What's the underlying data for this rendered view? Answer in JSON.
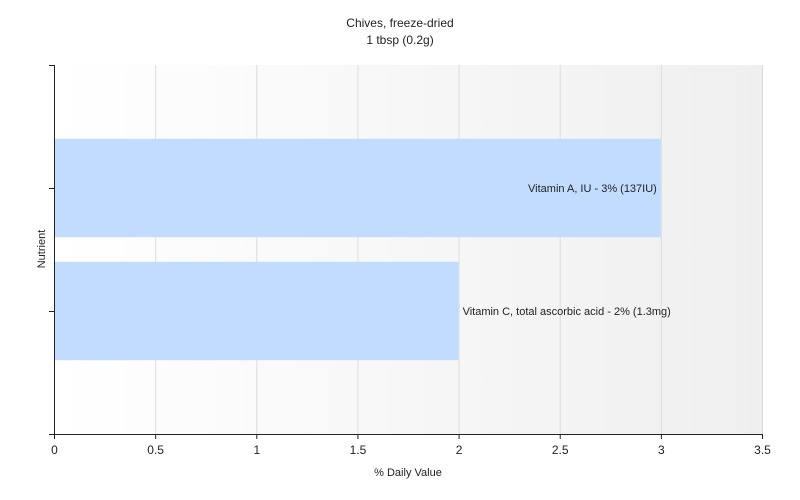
{
  "chart_data": {
    "type": "bar",
    "orientation": "horizontal",
    "title": "Chives, freeze-dried",
    "subtitle": "1 tbsp (0.2g)",
    "xlabel": "% Daily Value",
    "ylabel": "Nutrient",
    "xlim": [
      0,
      3.5
    ],
    "x_ticks": [
      "0",
      "0.5",
      "1",
      "1.5",
      "2",
      "2.5",
      "3",
      "3.5"
    ],
    "grid": true,
    "legend": "none",
    "categories": [
      "Vitamin A, IU",
      "Vitamin C, total ascorbic acid"
    ],
    "values": [
      3,
      2
    ],
    "data_labels": [
      "Vitamin A, IU - 3% (137IU)",
      "Vitamin C, total ascorbic acid - 2% (1.3mg)"
    ],
    "colors": {
      "bar": "#c2dcff",
      "grid": "#dcdcdc",
      "axis": "#222222",
      "plot_gradient_start": "#ffffff",
      "plot_gradient_end": "#efefef"
    }
  }
}
